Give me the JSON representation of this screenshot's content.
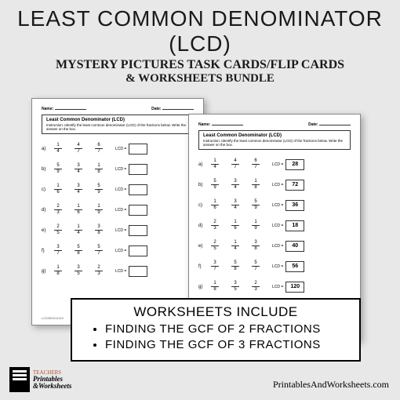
{
  "header": {
    "title": "LEAST COMMON DENOMINATOR (LCD)",
    "subtitle1": "MYSTERY PICTURES TASK CARDS/FLIP CARDS",
    "subtitle2": "& WORKSHEETS BUNDLE"
  },
  "worksheet": {
    "name_label": "Name:",
    "date_label": "Date:",
    "title": "Least Common Denominator (LCD)",
    "instruction": "Instruction: Identify the least common denominator (LCD) of the fractions below. Write the answer on the box.",
    "lcd_label": "LCD =",
    "footer_code": "LCD3B1911149",
    "footer_site": "TeachersLibrary"
  },
  "ws1_rows": [
    {
      "l": "a)",
      "f": [
        [
          "1",
          "4"
        ],
        [
          "4",
          "7"
        ],
        [
          "6",
          "7"
        ]
      ],
      "ans": ""
    },
    {
      "l": "b)",
      "f": [
        [
          "5",
          "9"
        ],
        [
          "3",
          "4"
        ],
        [
          "1",
          "8"
        ]
      ],
      "ans": ""
    },
    {
      "l": "c)",
      "f": [
        [
          "1",
          "6"
        ],
        [
          "3",
          "4"
        ],
        [
          "5",
          "9"
        ]
      ],
      "ans": ""
    },
    {
      "l": "d)",
      "f": [
        [
          "2",
          "3"
        ],
        [
          "1",
          "6"
        ],
        [
          "1",
          "9"
        ]
      ],
      "ans": ""
    },
    {
      "l": "e)",
      "f": [
        [
          "2",
          "5"
        ],
        [
          "1",
          "4"
        ],
        [
          "3",
          "8"
        ]
      ],
      "ans": ""
    },
    {
      "l": "f)",
      "f": [
        [
          "3",
          "7"
        ],
        [
          "5",
          "8"
        ],
        [
          "5",
          "7"
        ]
      ],
      "ans": ""
    },
    {
      "l": "g)",
      "f": [
        [
          "1",
          "8"
        ],
        [
          "3",
          "5"
        ],
        [
          "2",
          "3"
        ]
      ],
      "ans": ""
    }
  ],
  "ws2_rows": [
    {
      "l": "a)",
      "f": [
        [
          "1",
          "4"
        ],
        [
          "4",
          "7"
        ],
        [
          "6",
          "7"
        ]
      ],
      "ans": "28"
    },
    {
      "l": "b)",
      "f": [
        [
          "5",
          "9"
        ],
        [
          "3",
          "4"
        ],
        [
          "1",
          "8"
        ]
      ],
      "ans": "72"
    },
    {
      "l": "c)",
      "f": [
        [
          "1",
          "6"
        ],
        [
          "3",
          "4"
        ],
        [
          "5",
          "9"
        ]
      ],
      "ans": "36"
    },
    {
      "l": "d)",
      "f": [
        [
          "2",
          "3"
        ],
        [
          "1",
          "6"
        ],
        [
          "1",
          "9"
        ]
      ],
      "ans": "18"
    },
    {
      "l": "e)",
      "f": [
        [
          "2",
          "5"
        ],
        [
          "1",
          "4"
        ],
        [
          "3",
          "8"
        ]
      ],
      "ans": "40"
    },
    {
      "l": "f)",
      "f": [
        [
          "3",
          "7"
        ],
        [
          "5",
          "8"
        ],
        [
          "5",
          "7"
        ]
      ],
      "ans": "56"
    },
    {
      "l": "g)",
      "f": [
        [
          "1",
          "8"
        ],
        [
          "3",
          "5"
        ],
        [
          "2",
          "3"
        ]
      ],
      "ans": "120"
    }
  ],
  "include": {
    "title": "WORKSHEETS INCLUDE",
    "items": [
      "FINDING THE GCF OF 2 FRACTIONS",
      "FINDING THE GCF OF 3 FRACTIONS"
    ]
  },
  "branding": {
    "logo_t1": "TEACHERS",
    "logo_t2": "Printables",
    "logo_t3": "&Worksheets",
    "url": "PrintablesAndWorksheets.com"
  }
}
